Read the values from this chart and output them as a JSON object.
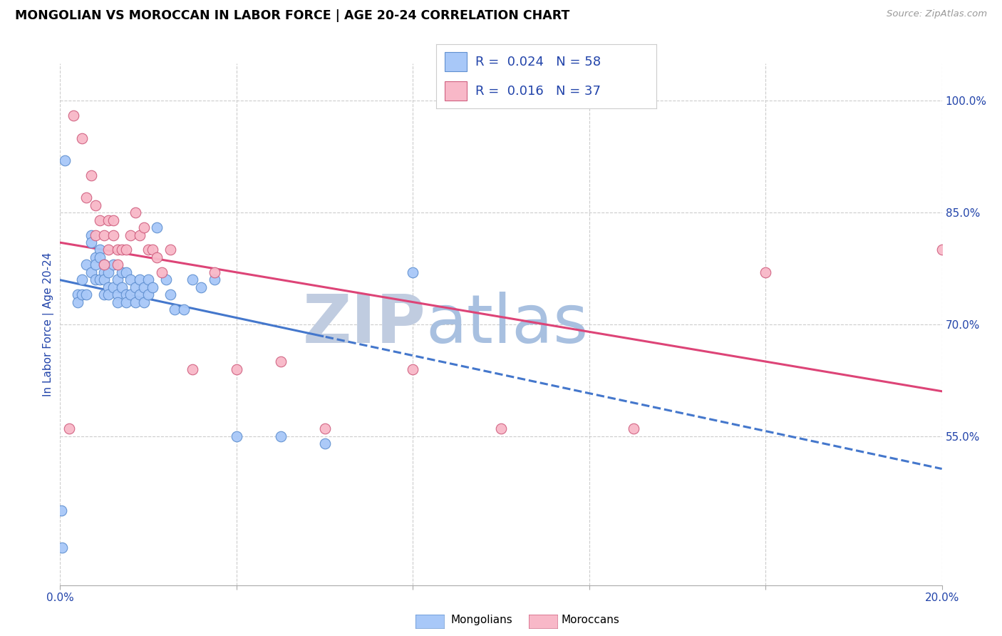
{
  "title": "MONGOLIAN VS MOROCCAN IN LABOR FORCE | AGE 20-24 CORRELATION CHART",
  "source": "Source: ZipAtlas.com",
  "ylabel": "In Labor Force | Age 20-24",
  "x_min": 0.0,
  "x_max": 0.2,
  "y_min": 0.35,
  "y_max": 1.05,
  "y_tick_labels": [
    "100.0%",
    "85.0%",
    "70.0%",
    "55.0%"
  ],
  "y_tick_positions": [
    1.0,
    0.85,
    0.7,
    0.55
  ],
  "mongolian_color": "#a8c8f8",
  "moroccan_color": "#f8b8c8",
  "mongolian_edge": "#6090d0",
  "moroccan_edge": "#d06080",
  "trendline_mongolian_color": "#4477cc",
  "trendline_moroccan_color": "#dd4477",
  "legend_color": "#2244aa",
  "watermark_zip_color": "#c0cce0",
  "watermark_atlas_color": "#a8c0e0",
  "mongolian_R": 0.024,
  "mongolian_N": 58,
  "moroccan_R": 0.016,
  "moroccan_N": 37,
  "mongolian_x": [
    0.0005,
    0.001,
    0.004,
    0.004,
    0.005,
    0.005,
    0.006,
    0.006,
    0.007,
    0.007,
    0.007,
    0.008,
    0.008,
    0.008,
    0.009,
    0.009,
    0.009,
    0.01,
    0.01,
    0.01,
    0.01,
    0.011,
    0.011,
    0.011,
    0.012,
    0.012,
    0.013,
    0.013,
    0.013,
    0.014,
    0.014,
    0.015,
    0.015,
    0.015,
    0.016,
    0.016,
    0.017,
    0.017,
    0.018,
    0.018,
    0.019,
    0.019,
    0.02,
    0.02,
    0.021,
    0.022,
    0.024,
    0.025,
    0.026,
    0.028,
    0.03,
    0.032,
    0.035,
    0.04,
    0.05,
    0.06,
    0.08,
    0.0002
  ],
  "mongolian_y": [
    0.4,
    0.92,
    0.74,
    0.73,
    0.76,
    0.74,
    0.78,
    0.74,
    0.82,
    0.81,
    0.77,
    0.79,
    0.78,
    0.76,
    0.8,
    0.79,
    0.76,
    0.78,
    0.77,
    0.76,
    0.74,
    0.77,
    0.75,
    0.74,
    0.78,
    0.75,
    0.76,
    0.74,
    0.73,
    0.77,
    0.75,
    0.77,
    0.74,
    0.73,
    0.76,
    0.74,
    0.75,
    0.73,
    0.76,
    0.74,
    0.75,
    0.73,
    0.76,
    0.74,
    0.75,
    0.83,
    0.76,
    0.74,
    0.72,
    0.72,
    0.76,
    0.75,
    0.76,
    0.55,
    0.55,
    0.54,
    0.77,
    0.45
  ],
  "moroccan_x": [
    0.002,
    0.003,
    0.005,
    0.006,
    0.007,
    0.008,
    0.008,
    0.009,
    0.01,
    0.01,
    0.011,
    0.011,
    0.012,
    0.012,
    0.013,
    0.013,
    0.014,
    0.015,
    0.016,
    0.017,
    0.018,
    0.019,
    0.02,
    0.021,
    0.022,
    0.023,
    0.025,
    0.03,
    0.035,
    0.04,
    0.05,
    0.06,
    0.08,
    0.1,
    0.13,
    0.16,
    0.2
  ],
  "moroccan_y": [
    0.56,
    0.98,
    0.95,
    0.87,
    0.9,
    0.86,
    0.82,
    0.84,
    0.82,
    0.78,
    0.84,
    0.8,
    0.84,
    0.82,
    0.8,
    0.78,
    0.8,
    0.8,
    0.82,
    0.85,
    0.82,
    0.83,
    0.8,
    0.8,
    0.79,
    0.77,
    0.8,
    0.64,
    0.77,
    0.64,
    0.65,
    0.56,
    0.64,
    0.56,
    0.56,
    0.77,
    0.8
  ]
}
